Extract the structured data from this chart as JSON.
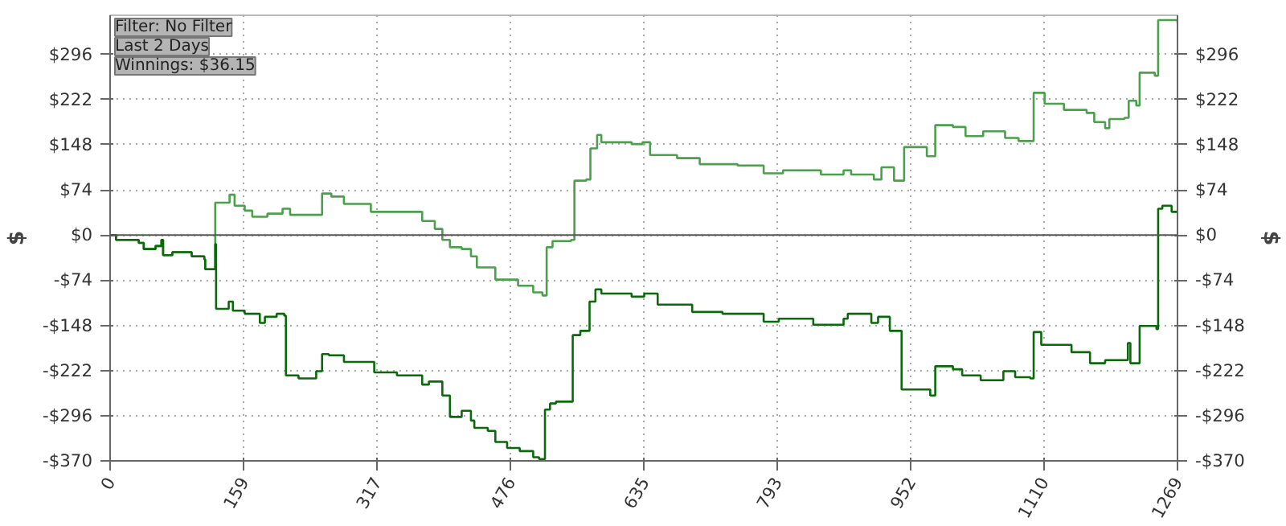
{
  "chart_data": {
    "type": "step",
    "annotations": [
      "Filter: No Filter",
      "Last 2 Days",
      "Winnings: $36.15"
    ],
    "ylabel": "$",
    "y2label": "$",
    "xlim": [
      0,
      1269
    ],
    "xticks": [
      0,
      159,
      317,
      476,
      635,
      793,
      952,
      1110,
      1269
    ],
    "ylim": [
      -370,
      360
    ],
    "yticks": [
      {
        "value": -370,
        "label": "-$370"
      },
      {
        "value": -296,
        "label": "-$296"
      },
      {
        "value": -222,
        "label": "-$222"
      },
      {
        "value": -148,
        "label": "-$148"
      },
      {
        "value": -74,
        "label": "-$74"
      },
      {
        "value": 0,
        "label": "$0"
      },
      {
        "value": 74,
        "label": "$74"
      },
      {
        "value": 148,
        "label": "$148"
      },
      {
        "value": 222,
        "label": "$222"
      },
      {
        "value": 296,
        "label": "$296"
      }
    ],
    "y2lim": [
      -370,
      360
    ],
    "y2ticks": [
      {
        "value": -370,
        "label": "-$370"
      },
      {
        "value": -296,
        "label": "-$296"
      },
      {
        "value": -222,
        "label": "-$222"
      },
      {
        "value": -148,
        "label": "-$148"
      },
      {
        "value": -74,
        "label": "-$74"
      },
      {
        "value": 0,
        "label": "$0"
      },
      {
        "value": 74,
        "label": "$74"
      },
      {
        "value": 148,
        "label": "$148"
      },
      {
        "value": 222,
        "label": "$222"
      },
      {
        "value": 296,
        "label": "$296"
      }
    ],
    "grid": true,
    "ref_lines": [
      {
        "axis": "y",
        "value": 0,
        "color": "#555555"
      }
    ],
    "series": [
      {
        "color": "#4c9f4c",
        "x": [
          0,
          7,
          34,
          40,
          54,
          61,
          63,
          74,
          97,
          112,
          113,
          123,
          125,
          133,
          142,
          148,
          160,
          169,
          187,
          205,
          214,
          241,
          252,
          263,
          278,
          310,
          341,
          371,
          386,
          395,
          404,
          418,
          429,
          436,
          458,
          485,
          503,
          514,
          519,
          526,
          548,
          552,
          566,
          571,
          579,
          584,
          620,
          633,
          642,
          674,
          701,
          746,
          777,
          800,
          845,
          872,
          881,
          908,
          917,
          932,
          944,
          971,
          981,
          1002,
          1017,
          1038,
          1064,
          1080,
          1098,
          1111,
          1134,
          1161,
          1170,
          1183,
          1188,
          1206,
          1211,
          1220,
          1224,
          1242,
          1246,
          1260,
          1269
        ],
        "values": [
          0,
          -8,
          -13,
          -23,
          -18,
          -8,
          -33,
          -28,
          -35,
          -40,
          -56,
          -56,
          53,
          53,
          66,
          48,
          40,
          30,
          35,
          43,
          33,
          33,
          68,
          63,
          51,
          38,
          38,
          23,
          10,
          -8,
          -20,
          -23,
          -35,
          -53,
          -73,
          -83,
          -94,
          -99,
          -20,
          -10,
          -8,
          89,
          91,
          142,
          164,
          152,
          149,
          152,
          131,
          126,
          116,
          114,
          101,
          106,
          99,
          106,
          99,
          91,
          111,
          89,
          144,
          129,
          180,
          177,
          162,
          170,
          159,
          154,
          233,
          215,
          205,
          200,
          185,
          175,
          190,
          192,
          220,
          212,
          266,
          261,
          352,
          352,
          347
        ]
      },
      {
        "color": "#0a6a0a",
        "x": [
          0,
          7,
          34,
          40,
          54,
          61,
          63,
          74,
          97,
          112,
          113,
          123,
          125,
          126,
          141,
          146,
          160,
          178,
          184,
          198,
          207,
          209,
          224,
          245,
          252,
          260,
          278,
          314,
          341,
          359,
          371,
          379,
          395,
          404,
          418,
          429,
          433,
          449,
          458,
          472,
          487,
          503,
          510,
          517,
          523,
          530,
          550,
          559,
          570,
          577,
          584,
          620,
          635,
          651,
          692,
          728,
          777,
          795,
          836,
          872,
          877,
          905,
          913,
          927,
          941,
          975,
          981,
          1002,
          1013,
          1035,
          1062,
          1076,
          1094,
          1098,
          1107,
          1143,
          1165,
          1183,
          1206,
          1210,
          1213,
          1222,
          1224,
          1244,
          1246,
          1251,
          1262,
          1269
        ],
        "values": [
          0,
          -8,
          -13,
          -23,
          -18,
          -8,
          -33,
          -28,
          -35,
          -40,
          -56,
          -56,
          -15,
          -121,
          -109,
          -124,
          -129,
          -144,
          -134,
          -129,
          -132,
          -230,
          -235,
          -223,
          -195,
          -197,
          -208,
          -225,
          -230,
          -230,
          -245,
          -240,
          -263,
          -298,
          -288,
          -304,
          -316,
          -321,
          -339,
          -349,
          -354,
          -364,
          -367,
          -286,
          -276,
          -273,
          -164,
          -157,
          -109,
          -89,
          -96,
          -101,
          -96,
          -114,
          -126,
          -129,
          -142,
          -137,
          -147,
          -137,
          -129,
          -144,
          -134,
          -157,
          -253,
          -263,
          -215,
          -220,
          -230,
          -238,
          -223,
          -233,
          -235,
          -159,
          -180,
          -192,
          -210,
          -205,
          -205,
          -177,
          -210,
          -210,
          -149,
          -154,
          43,
          48,
          38,
          36
        ]
      }
    ]
  }
}
